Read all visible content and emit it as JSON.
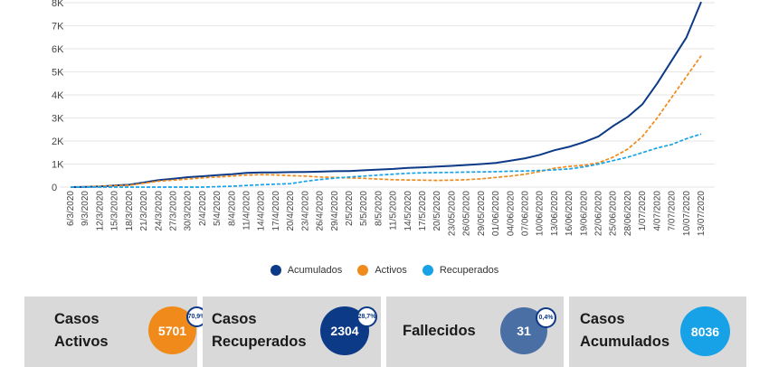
{
  "chart_data": {
    "type": "line",
    "x_labels": [
      "6/3/2020",
      "9/3/2020",
      "12/3/2020",
      "15/3/2020",
      "18/3/2020",
      "21/3/2020",
      "24/3/2020",
      "27/3/2020",
      "30/3/2020",
      "2/4/2020",
      "5/4/2020",
      "8/4/2020",
      "11/4/2020",
      "14/4/2020",
      "17/4/2020",
      "20/4/2020",
      "23/4/2020",
      "26/4/2020",
      "29/4/2020",
      "2/5/2020",
      "5/5/2020",
      "8/5/2020",
      "11/5/2020",
      "14/5/2020",
      "17/5/2020",
      "20/5/2020",
      "23/05/2020",
      "26/05/2020",
      "29/05/2020",
      "01/06/2020",
      "04/06/2020",
      "07/06/2020",
      "10/06/2020",
      "13/06/2020",
      "16/06/2020",
      "19/06/2020",
      "22/06/2020",
      "25/06/2020",
      "28/06/2020",
      "1/07/2020",
      "4/07/2020",
      "7/07/2020",
      "10/07/2020",
      "13/07/2020"
    ],
    "y_ticks": [
      "0",
      "1K",
      "2K",
      "3K",
      "4K",
      "5K",
      "6K",
      "7K",
      "8K"
    ],
    "ylim": [
      0,
      8000
    ],
    "series": [
      {
        "name": "Acumulados",
        "color": "#0d3a87",
        "dash": "solid",
        "values": [
          1,
          10,
          30,
          70,
          100,
          200,
          300,
          360,
          430,
          470,
          520,
          560,
          620,
          640,
          640,
          650,
          660,
          670,
          690,
          700,
          730,
          760,
          790,
          830,
          860,
          890,
          920,
          960,
          1000,
          1050,
          1150,
          1250,
          1400,
          1600,
          1750,
          1950,
          2200,
          2650,
          3050,
          3600,
          4500,
          5500,
          6500,
          8036
        ]
      },
      {
        "name": "Activos",
        "color": "#f08a1a",
        "dash": "dashed",
        "values": [
          1,
          10,
          30,
          60,
          80,
          170,
          260,
          300,
          350,
          400,
          440,
          480,
          520,
          540,
          530,
          500,
          480,
          440,
          420,
          400,
          380,
          350,
          320,
          310,
          300,
          290,
          300,
          320,
          360,
          420,
          480,
          560,
          680,
          820,
          900,
          950,
          1050,
          1300,
          1650,
          2200,
          3000,
          3900,
          4800,
          5701
        ]
      },
      {
        "name": "Recuperados",
        "color": "#17a2e8",
        "dash": "dashed",
        "values": [
          0,
          0,
          0,
          0,
          0,
          0,
          0,
          0,
          0,
          0,
          20,
          40,
          70,
          100,
          130,
          150,
          250,
          330,
          390,
          440,
          480,
          520,
          560,
          600,
          620,
          630,
          640,
          650,
          660,
          670,
          690,
          700,
          720,
          750,
          790,
          880,
          1000,
          1150,
          1300,
          1500,
          1700,
          1850,
          2100,
          2304
        ]
      }
    ],
    "legend_position": "bottom-center",
    "grid": true
  },
  "legend": {
    "items": [
      {
        "label": "Acumulados",
        "color": "#0d3a87"
      },
      {
        "label": "Activos",
        "color": "#f08a1a"
      },
      {
        "label": "Recuperados",
        "color": "#17a2e8"
      }
    ]
  },
  "cards": [
    {
      "label": "Casos\nActivos",
      "value": "5701",
      "percent": "70,9%",
      "circle_color": "#f08a1a"
    },
    {
      "label": "Casos\nRecuperados",
      "value": "2304",
      "percent": "28,7%",
      "circle_color": "#0d3a87"
    },
    {
      "label": "Fallecidos",
      "value": "31",
      "percent": "0,4%",
      "circle_color": "#4a6fa5"
    },
    {
      "label": "Casos\nAcumulados",
      "value": "8036",
      "percent": "",
      "circle_color": "#17a2e8"
    }
  ]
}
